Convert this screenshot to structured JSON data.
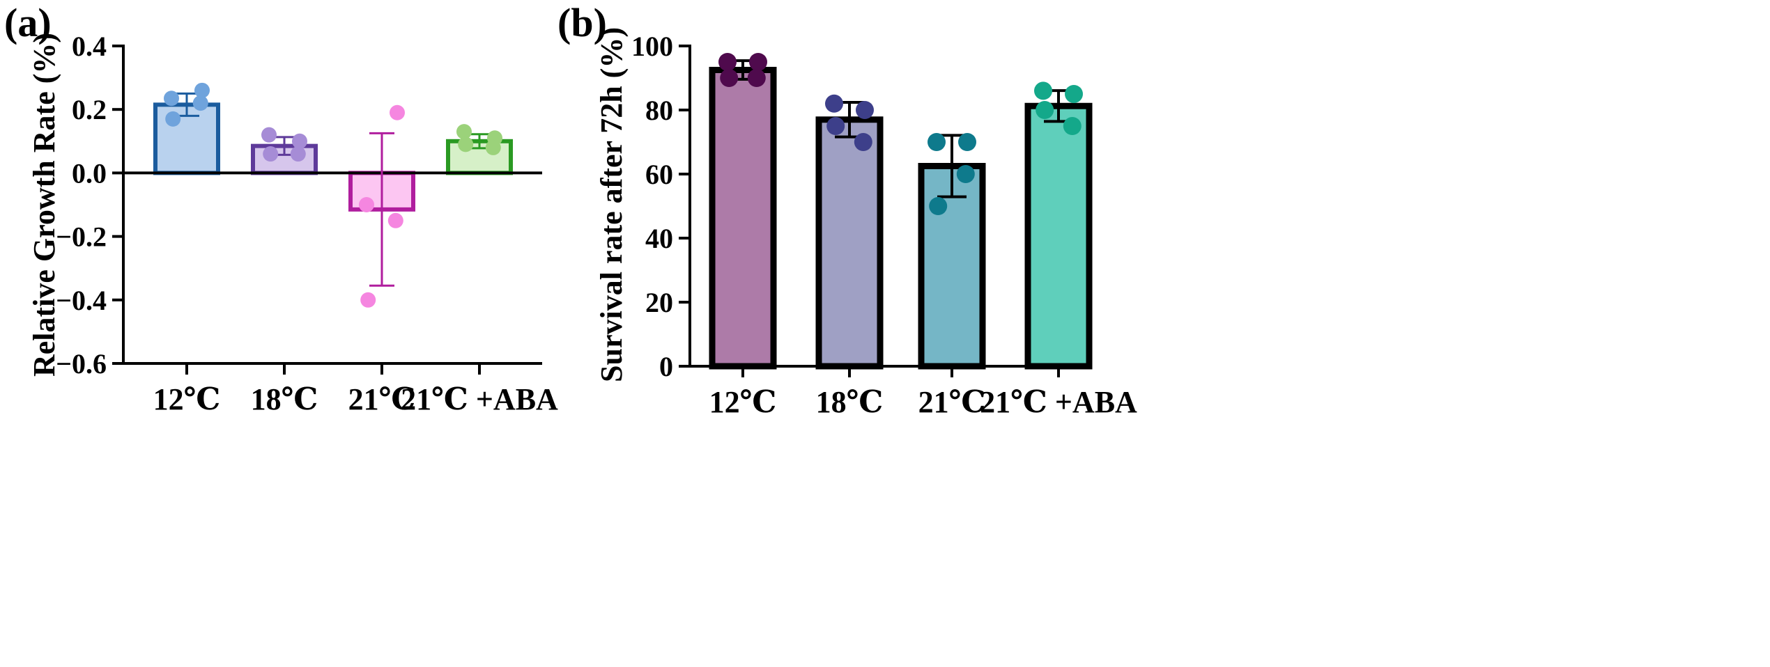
{
  "chart_data": [
    {
      "type": "bar",
      "panel_label": "(a)",
      "title": "",
      "xlabel": "",
      "ylabel": "Relative Growth Rate (%)",
      "ylim": [
        -0.6,
        0.4
      ],
      "yticks": [
        -0.6,
        -0.4,
        -0.2,
        0.0,
        0.2,
        0.4
      ],
      "ytick_labels": [
        "−0.6",
        "−0.4",
        "−0.2",
        "0.0",
        "0.2",
        "0.4"
      ],
      "grid": false,
      "categories": [
        "12℃",
        "18℃",
        "21℃",
        "21℃ +ABA"
      ],
      "values": [
        0.215,
        0.085,
        -0.115,
        0.1
      ],
      "error_bars": [
        0.035,
        0.028,
        0.24,
        0.022
      ],
      "points": [
        [
          0.26,
          0.235,
          0.22,
          0.17
        ],
        [
          0.12,
          0.1,
          0.06,
          0.06
        ],
        [
          0.19,
          -0.1,
          -0.15,
          -0.4
        ],
        [
          0.13,
          0.11,
          0.09,
          0.08
        ]
      ],
      "colors": {
        "fill": [
          "#b9d2ee",
          "#d6c6ec",
          "#fcc6f2",
          "#d6f0c8"
        ],
        "edge": [
          "#1b5c9e",
          "#5e3a9a",
          "#b01e9e",
          "#2a9a22"
        ],
        "points": [
          "#6fa3dc",
          "#a68cd6",
          "#f586e0",
          "#9bd27a"
        ]
      }
    },
    {
      "type": "bar",
      "panel_label": "(b)",
      "title": "",
      "xlabel": "",
      "ylabel": "Survival rate after 72h (%)",
      "ylim": [
        0,
        100
      ],
      "yticks": [
        0,
        20,
        40,
        60,
        80,
        100
      ],
      "ytick_labels": [
        "0",
        "20",
        "40",
        "60",
        "80",
        "100"
      ],
      "grid": false,
      "categories": [
        "12℃",
        "18℃",
        "21℃",
        "21℃ +ABA"
      ],
      "values": [
        92.5,
        77,
        62.5,
        81.25
      ],
      "error_bars": [
        2.9,
        5.4,
        9.6,
        4.8
      ],
      "points": [
        [
          95,
          95,
          90,
          90
        ],
        [
          82,
          80,
          75,
          70
        ],
        [
          70,
          70,
          60,
          50
        ],
        [
          86,
          85,
          80,
          75
        ]
      ],
      "colors": {
        "fill": [
          "#ad7ba8",
          "#9fa0c4",
          "#75b6c6",
          "#5fcfbb"
        ],
        "edge": [
          "#000000",
          "#000000",
          "#000000",
          "#000000"
        ],
        "points": [
          "#4f0a4d",
          "#3d3f8a",
          "#0e7a8c",
          "#14a88a"
        ]
      }
    }
  ]
}
